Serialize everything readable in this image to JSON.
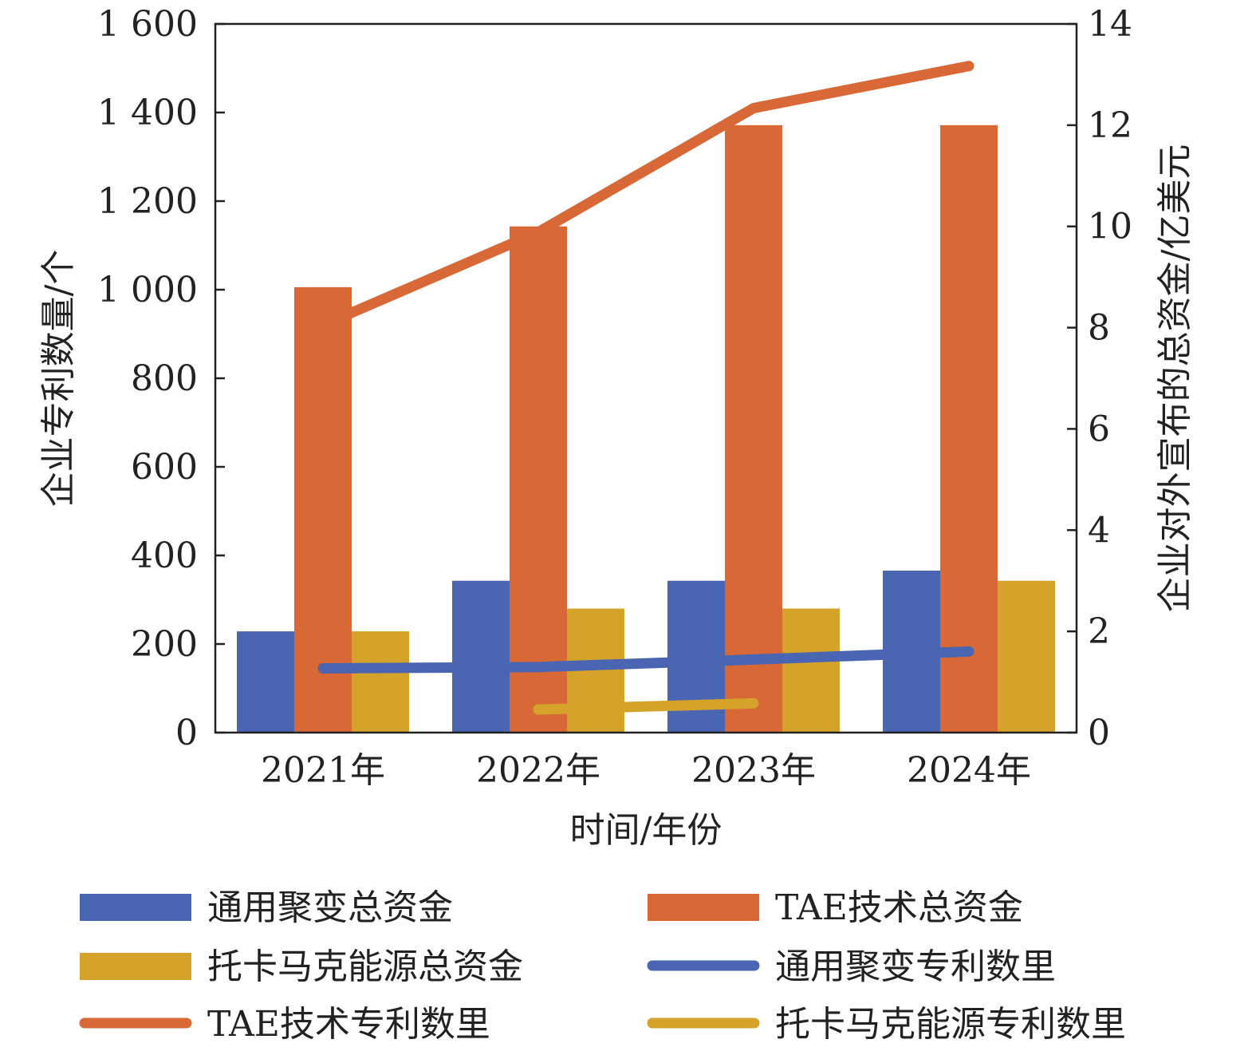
{
  "chart_data": {
    "type": "bar",
    "categories": [
      "2021年",
      "2022年",
      "2023年",
      "2024年"
    ],
    "xlabel": "时间/年份",
    "ylabel": "企业专利数量/个",
    "y2label": "企业对外宣布的总资金/亿美元",
    "ylim": [
      0,
      1600
    ],
    "y2lim": [
      0,
      14
    ],
    "yticks": [
      "0",
      "200",
      "400",
      "600",
      "800",
      "1 000",
      "1 200",
      "1 400",
      "1 600"
    ],
    "y2ticks": [
      "0",
      "2",
      "4",
      "6",
      "8",
      "10",
      "12",
      "14"
    ],
    "bar_series": [
      {
        "name": "通用聚变总资金",
        "axis": "right",
        "values": [
          2,
          3,
          3,
          3.2
        ],
        "color": "#4a66b2"
      },
      {
        "name": "TAE技术总资金",
        "axis": "right",
        "values": [
          8.8,
          10,
          12,
          12
        ],
        "color": "#d86835"
      },
      {
        "name": "托卡马克能源总资金",
        "axis": "right",
        "values": [
          2,
          2.45,
          2.45,
          3
        ],
        "color": "#d5a22a"
      }
    ],
    "line_series": [
      {
        "name": "通用聚变专利数里",
        "axis": "left",
        "values": [
          145,
          148,
          165,
          183
        ],
        "color": "#4a66b2"
      },
      {
        "name": "TAE技术专利数里",
        "axis": "left",
        "values": [
          920,
          1130,
          1410,
          1505
        ],
        "color": "#d86835"
      },
      {
        "name": "托卡马克能源专利数里",
        "axis": "left",
        "values": [
          null,
          52,
          66,
          null
        ],
        "color": "#d5a22a"
      }
    ],
    "legend": {
      "placement": "bottom",
      "items": [
        {
          "label": "通用聚变总资金",
          "kind": "bar",
          "color": "#4a66b2"
        },
        {
          "label": "TAE技术总资金",
          "kind": "bar",
          "color": "#d86835"
        },
        {
          "label": "托卡马克能源总资金",
          "kind": "bar",
          "color": "#d5a22a"
        },
        {
          "label": "通用聚变专利数里",
          "kind": "line",
          "color": "#4a66b2"
        },
        {
          "label": "TAE技术专利数里",
          "kind": "line",
          "color": "#d86835"
        },
        {
          "label": "托卡马克能源专利数里",
          "kind": "line",
          "color": "#d5a22a"
        }
      ]
    },
    "grid": false
  }
}
